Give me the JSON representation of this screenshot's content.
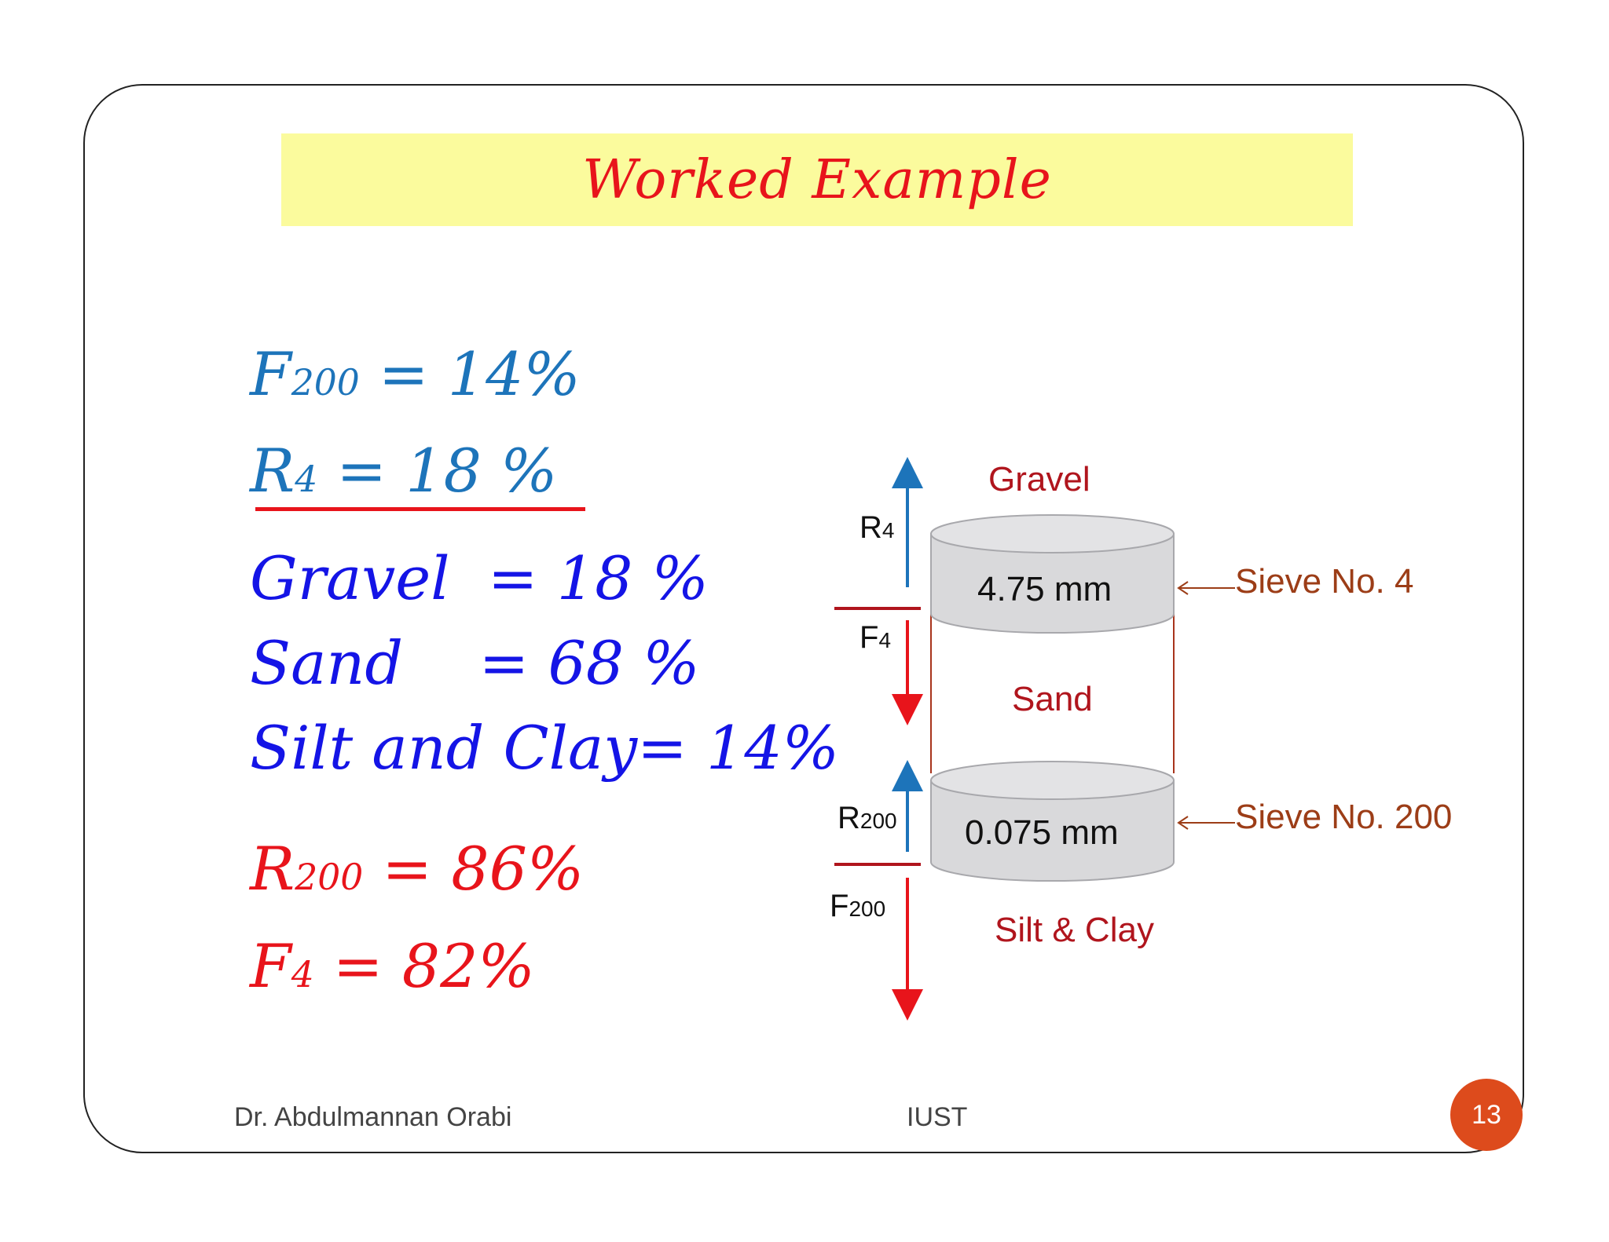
{
  "slide": {
    "title": "Worked Example",
    "equations": {
      "f200": {
        "symbol": "F",
        "sub": "200",
        "rest": " = 14%"
      },
      "r4": {
        "symbol": "R",
        "sub": "4",
        "rest": " = 18 %"
      },
      "gravel": "Gravel  = 18 %",
      "sand": "Sand    = 68 %",
      "silt_clay": "Silt and Clay= 14%",
      "r200": {
        "symbol": "R",
        "sub": "200",
        "rest": " = 86%"
      },
      "f4": {
        "symbol": "F",
        "sub": "4",
        "rest": " = 82%"
      }
    },
    "colors": {
      "teal": "#1d74ba",
      "blue": "#1414e6",
      "red": "#e8141b",
      "title_band": "#fbfb9d",
      "page_badge": "#dd4b1c"
    }
  },
  "diagram": {
    "gravel_label": "Gravel",
    "sand_label": "Sand",
    "silt_clay_label": "Silt & Clay",
    "sieve4_size": "4.75 mm",
    "sieve200_size": "0.075 mm",
    "sieve4_name": "Sieve No. 4",
    "sieve200_name": "Sieve No. 200",
    "r4": {
      "symbol": "R",
      "sub": "4"
    },
    "f4": {
      "symbol": "F",
      "sub": "4"
    },
    "r200": {
      "symbol": "R",
      "sub": "200"
    },
    "f200": {
      "symbol": "F",
      "sub": "200"
    }
  },
  "footer": {
    "author": "Dr. Abdulmannan Orabi",
    "institution": "IUST",
    "page_number": "13"
  }
}
